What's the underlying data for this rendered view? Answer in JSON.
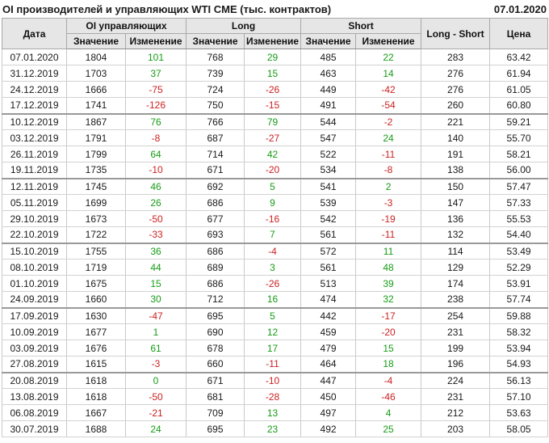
{
  "titlebar": {
    "title": "OI производителей и управляющих WTI CME (тыс. контрактов)",
    "report_date": "07.01.2020"
  },
  "colors": {
    "positive_change": "#169c16",
    "negative_change": "#cc2222",
    "header_bg": "#e6e6e6"
  },
  "table": {
    "headers": {
      "date": "Дата",
      "oi_group": "OI управляющих",
      "long_group": "Long",
      "short_group": "Short",
      "value": "Значение",
      "change": "Изменение",
      "long_short": "Long - Short",
      "price": "Цена"
    },
    "group_separator_every": 4,
    "rows": [
      [
        "07.01.2020",
        1804,
        101,
        768,
        29,
        485,
        22,
        283,
        "63.42"
      ],
      [
        "31.12.2019",
        1703,
        37,
        739,
        15,
        463,
        14,
        276,
        "61.94"
      ],
      [
        "24.12.2019",
        1666,
        -75,
        724,
        -26,
        449,
        -42,
        276,
        "61.05"
      ],
      [
        "17.12.2019",
        1741,
        -126,
        750,
        -15,
        491,
        -54,
        260,
        "60.80"
      ],
      [
        "10.12.2019",
        1867,
        76,
        766,
        79,
        544,
        -2,
        221,
        "59.21"
      ],
      [
        "03.12.2019",
        1791,
        -8,
        687,
        -27,
        547,
        24,
        140,
        "55.70"
      ],
      [
        "26.11.2019",
        1799,
        64,
        714,
        42,
        522,
        -11,
        191,
        "58.21"
      ],
      [
        "19.11.2019",
        1735,
        -10,
        671,
        -20,
        534,
        -8,
        138,
        "56.00"
      ],
      [
        "12.11.2019",
        1745,
        46,
        692,
        5,
        541,
        2,
        150,
        "57.47"
      ],
      [
        "05.11.2019",
        1699,
        26,
        686,
        9,
        539,
        -3,
        147,
        "57.33"
      ],
      [
        "29.10.2019",
        1673,
        -50,
        677,
        -16,
        542,
        -19,
        136,
        "55.53"
      ],
      [
        "22.10.2019",
        1722,
        -33,
        693,
        7,
        561,
        -11,
        132,
        "54.40"
      ],
      [
        "15.10.2019",
        1755,
        36,
        686,
        -4,
        572,
        11,
        114,
        "53.49"
      ],
      [
        "08.10.2019",
        1719,
        44,
        689,
        3,
        561,
        48,
        129,
        "52.29"
      ],
      [
        "01.10.2019",
        1675,
        15,
        686,
        -26,
        513,
        39,
        174,
        "53.91"
      ],
      [
        "24.09.2019",
        1660,
        30,
        712,
        16,
        474,
        32,
        238,
        "57.74"
      ],
      [
        "17.09.2019",
        1630,
        -47,
        695,
        5,
        442,
        -17,
        254,
        "59.88"
      ],
      [
        "10.09.2019",
        1677,
        1,
        690,
        12,
        459,
        -20,
        231,
        "58.32"
      ],
      [
        "03.09.2019",
        1676,
        61,
        678,
        17,
        479,
        15,
        199,
        "53.94"
      ],
      [
        "27.08.2019",
        1615,
        -3,
        660,
        -11,
        464,
        18,
        196,
        "54.93"
      ],
      [
        "20.08.2019",
        1618,
        0,
        671,
        -10,
        447,
        -4,
        224,
        "56.13"
      ],
      [
        "13.08.2019",
        1618,
        -50,
        681,
        -28,
        450,
        -46,
        231,
        "57.10"
      ],
      [
        "06.08.2019",
        1667,
        -21,
        709,
        13,
        497,
        4,
        212,
        "53.63"
      ],
      [
        "30.07.2019",
        1688,
        24,
        695,
        23,
        492,
        25,
        203,
        "58.05"
      ]
    ]
  }
}
